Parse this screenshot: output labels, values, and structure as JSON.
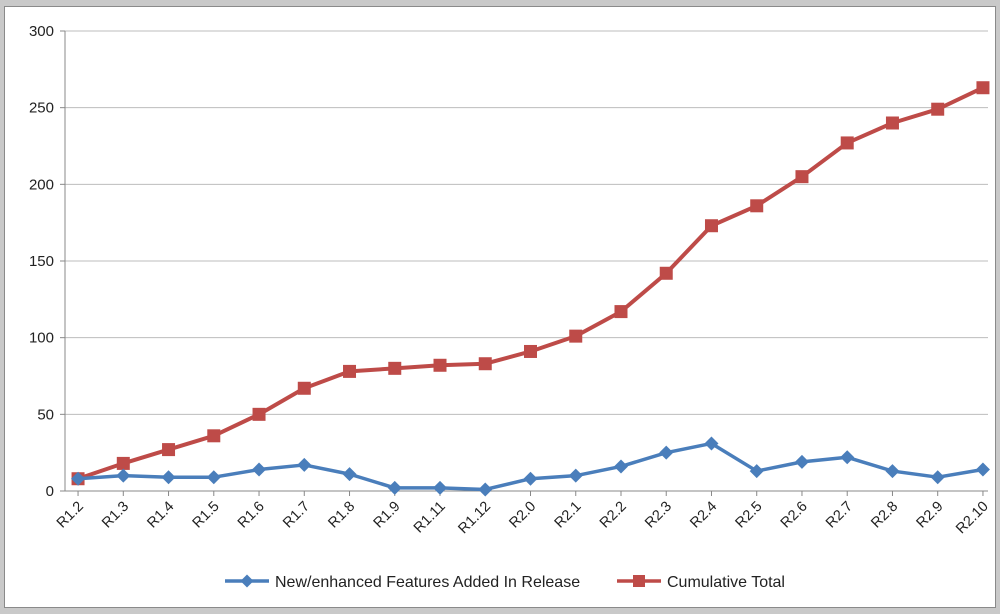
{
  "chart_data": {
    "type": "line",
    "categories": [
      "R1.2",
      "R1.3",
      "R1.4",
      "R1.5",
      "R1.6",
      "R1.7",
      "R1.8",
      "R1.9",
      "R1.11",
      "R1.12",
      "R2.0",
      "R2.1",
      "R2.2",
      "R2.3",
      "R2.4",
      "R2.5",
      "R2.6",
      "R2.7",
      "R2.8",
      "R2.9",
      "R2.10"
    ],
    "series": [
      {
        "name": "New/enhanced Features Added In Release",
        "color": "#4a7ebb",
        "marker": "diamond",
        "values": [
          8,
          10,
          9,
          9,
          14,
          17,
          11,
          2,
          2,
          1,
          8,
          10,
          16,
          25,
          31,
          13,
          19,
          22,
          13,
          9,
          14
        ]
      },
      {
        "name": "Cumulative Total",
        "color": "#be4b48",
        "marker": "square",
        "values": [
          8,
          18,
          27,
          36,
          50,
          67,
          78,
          80,
          82,
          83,
          91,
          101,
          117,
          142,
          173,
          186,
          205,
          227,
          240,
          249,
          263
        ]
      }
    ],
    "ylim": [
      0,
      300
    ],
    "yticks": [
      "0",
      "50",
      "100",
      "150",
      "200",
      "250",
      "300"
    ],
    "grid": true,
    "legend": "bottom"
  }
}
